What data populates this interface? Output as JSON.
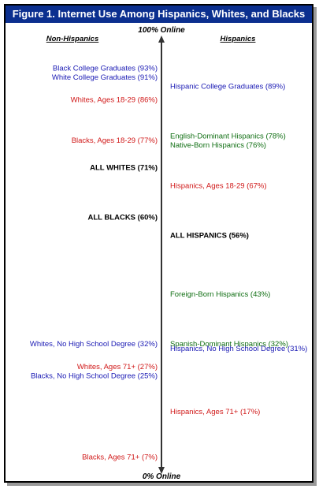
{
  "title": "Figure 1. Internet Use Among Hispanics, Whites, and Blacks",
  "colors": {
    "title_bg": "#0b2f8f",
    "blue": "#1a1ab4",
    "red": "#d01818",
    "green": "#0f6e12",
    "black": "#000000"
  },
  "chart_data": {
    "type": "dot-scale",
    "axis": {
      "top_label": "100% Online",
      "bottom_label": "0% Online",
      "range": [
        0,
        100
      ]
    },
    "columns": {
      "left": "Non-Hispanics",
      "right": "Hispanics"
    },
    "items": [
      {
        "side": "left",
        "text": "Black College Graduates (93%)",
        "value": 93,
        "color": "blue"
      },
      {
        "side": "left",
        "text": "White College Graduates (91%)",
        "value": 91,
        "color": "blue"
      },
      {
        "side": "left",
        "text": "Whites, Ages 18-29 (86%)",
        "value": 86,
        "color": "red"
      },
      {
        "side": "left",
        "text": "Blacks, Ages 18-29 (77%)",
        "value": 77,
        "color": "red"
      },
      {
        "side": "left",
        "text": "ALL WHITES (71%)",
        "value": 71,
        "color": "black",
        "bold": true
      },
      {
        "side": "left",
        "text": "ALL BLACKS (60%)",
        "value": 60,
        "color": "black",
        "bold": true
      },
      {
        "side": "left",
        "text": "Whites, No High School Degree (32%)",
        "value": 32,
        "color": "blue"
      },
      {
        "side": "left",
        "text": "Whites, Ages 71+ (27%)",
        "value": 27,
        "color": "red"
      },
      {
        "side": "left",
        "text": "Blacks, No High School Degree (25%)",
        "value": 25,
        "color": "blue"
      },
      {
        "side": "left",
        "text": "Blacks, Ages 71+ (7%)",
        "value": 7,
        "color": "red"
      },
      {
        "side": "right",
        "text": "Hispanic College Graduates (89%)",
        "value": 89,
        "color": "blue"
      },
      {
        "side": "right",
        "text": "English-Dominant Hispanics (78%)",
        "value": 78,
        "color": "green"
      },
      {
        "side": "right",
        "text": "Native-Born Hispanics (76%)",
        "value": 76,
        "color": "green"
      },
      {
        "side": "right",
        "text": "Hispanics, Ages 18-29 (67%)",
        "value": 67,
        "color": "red"
      },
      {
        "side": "right",
        "text": "ALL HISPANICS (56%)",
        "value": 56,
        "color": "black",
        "bold": true
      },
      {
        "side": "right",
        "text": "Foreign-Born Hispanics (43%)",
        "value": 43,
        "color": "green"
      },
      {
        "side": "right",
        "text": "Spanish-Dominant Hispanics (32%)",
        "value": 32,
        "color": "green"
      },
      {
        "side": "right",
        "text": "Hispanics, No High School Degree (31%)",
        "value": 31,
        "color": "blue"
      },
      {
        "side": "right",
        "text": "Hispanics, Ages 71+ (17%)",
        "value": 17,
        "color": "red"
      }
    ]
  }
}
